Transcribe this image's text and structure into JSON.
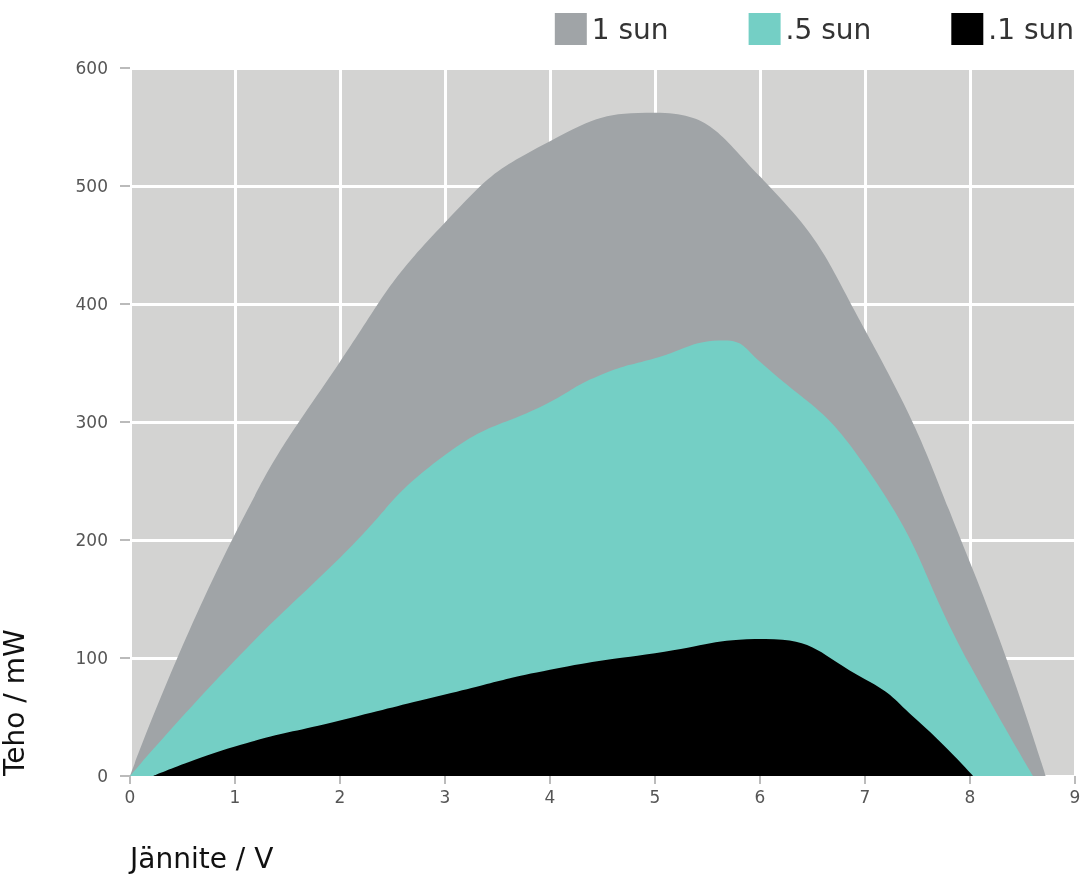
{
  "chart_data": {
    "type": "area",
    "xlabel": "Jännite / V",
    "ylabel": "Teho / mW",
    "xlim": [
      0,
      9
    ],
    "xticks": [
      0,
      1,
      2,
      3,
      4,
      5,
      6,
      7,
      8,
      9
    ],
    "ylim": [
      0,
      600
    ],
    "yticks": [
      0,
      100,
      200,
      300,
      400,
      500,
      600
    ],
    "grid": true,
    "legend": "top right",
    "series": [
      {
        "name": "1 sun",
        "color": "#a0a4a7",
        "x": [
          0,
          1,
          2,
          3,
          4,
          5,
          6,
          7,
          8,
          8.72
        ],
        "values": [
          0,
          205,
          351,
          469,
          538,
          562,
          508,
          378,
          181,
          0
        ]
      },
      {
        "name": ".5 sun",
        "color": "#74cfc5",
        "x": [
          0,
          1,
          2,
          3,
          4,
          4.46,
          5,
          5.66,
          6,
          7,
          8,
          8.6
        ],
        "values": [
          0,
          98,
          185,
          272,
          317,
          339,
          354,
          369,
          351,
          263,
          94,
          0
        ]
      },
      {
        "name": ".1 sun",
        "color": "#000000",
        "x": [
          0.22,
          1,
          2,
          3,
          4,
          5,
          6.05,
          7,
          7.5,
          8.03
        ],
        "values": [
          0,
          25,
          47,
          69,
          90,
          104,
          116,
          82,
          47,
          0
        ]
      }
    ]
  }
}
